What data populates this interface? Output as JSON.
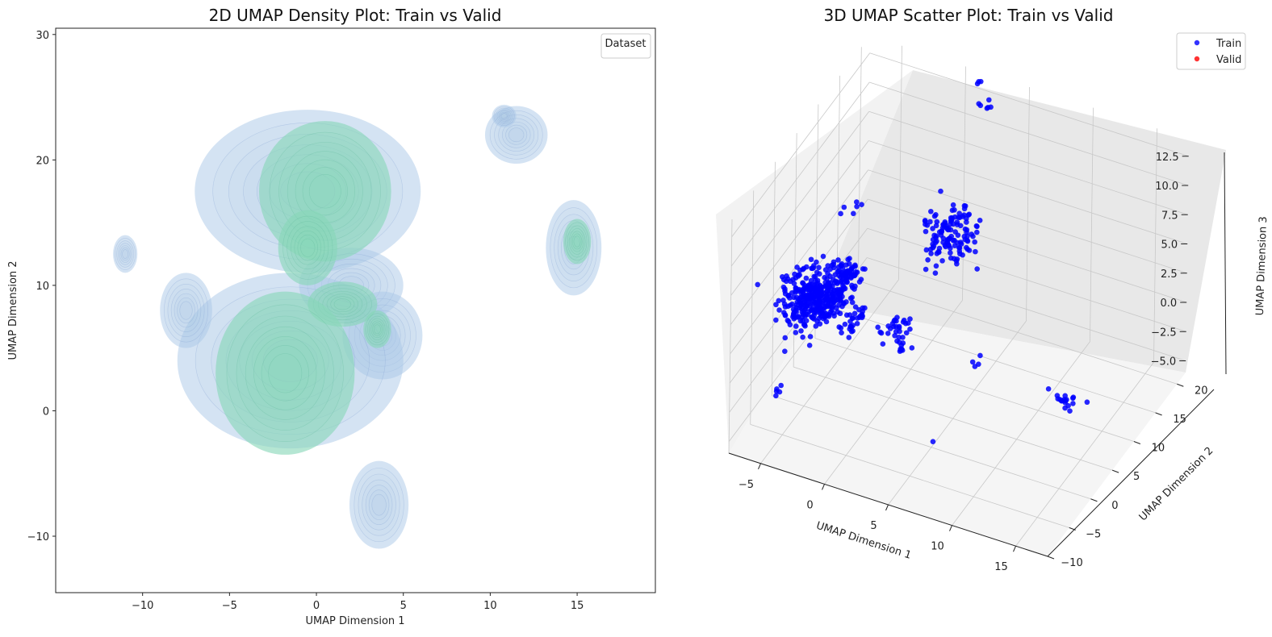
{
  "chart_data": [
    {
      "type": "density",
      "title": "2D UMAP Density Plot: Train vs Valid",
      "xlabel": "UMAP Dimension 1",
      "ylabel": "UMAP Dimension 2",
      "xlim": [
        -15,
        19.5
      ],
      "ylim": [
        -14.5,
        30.5
      ],
      "xticks": [
        -10,
        -5,
        0,
        5,
        10,
        15
      ],
      "xtick_labels": [
        "−10",
        "−5",
        "0",
        "5",
        "10",
        "15"
      ],
      "yticks": [
        -10,
        0,
        10,
        20,
        30
      ],
      "ytick_labels": [
        "−10",
        "0",
        "10",
        "20",
        "30"
      ],
      "grid": false,
      "legend": {
        "title": "Dataset",
        "position": "top-right"
      },
      "series": [
        {
          "color": "#a9c8e8",
          "blobs": [
            {
              "x": -0.5,
              "y": 17.5,
              "rx": 6.5,
              "ry": 6.5
            },
            {
              "x": 2.0,
              "y": 10.0,
              "rx": 3.0,
              "ry": 3.0
            },
            {
              "x": 3.8,
              "y": 6.0,
              "rx": 2.3,
              "ry": 3.5
            },
            {
              "x": -1.5,
              "y": 4.0,
              "rx": 6.5,
              "ry": 7.0
            },
            {
              "x": -7.5,
              "y": 8.0,
              "rx": 1.5,
              "ry": 3.0
            },
            {
              "x": -11.0,
              "y": 12.5,
              "rx": 0.7,
              "ry": 1.5
            },
            {
              "x": 3.6,
              "y": -7.5,
              "rx": 1.7,
              "ry": 3.5
            },
            {
              "x": 11.5,
              "y": 22.0,
              "rx": 1.8,
              "ry": 2.3
            },
            {
              "x": 10.8,
              "y": 23.5,
              "rx": 0.7,
              "ry": 0.9
            },
            {
              "x": 14.8,
              "y": 13.0,
              "rx": 1.6,
              "ry": 3.8
            }
          ]
        },
        {
          "color": "#88d7b8",
          "blobs": [
            {
              "x": 0.5,
              "y": 17.5,
              "rx": 3.8,
              "ry": 5.6
            },
            {
              "x": -0.5,
              "y": 13.0,
              "rx": 1.7,
              "ry": 3.0
            },
            {
              "x": 1.5,
              "y": 8.5,
              "rx": 2.0,
              "ry": 1.8
            },
            {
              "x": 3.5,
              "y": 6.5,
              "rx": 0.8,
              "ry": 1.5
            },
            {
              "x": -1.8,
              "y": 3.0,
              "rx": 4.0,
              "ry": 6.5
            },
            {
              "x": 15.0,
              "y": 13.5,
              "rx": 0.8,
              "ry": 1.8
            }
          ]
        }
      ]
    },
    {
      "type": "scatter",
      "projection": "3d",
      "title": "3D UMAP Scatter Plot:  Train vs Valid",
      "xlabel": "UMAP Dimension 1",
      "ylabel": "UMAP Dimension 2",
      "zlabel": "UMAP Dimension 3",
      "xlim": [
        -7.5,
        17.5
      ],
      "ylim": [
        -10,
        22
      ],
      "zlim": [
        -6,
        14
      ],
      "xticks": [
        -5,
        0,
        5,
        10,
        15
      ],
      "xtick_labels": [
        "−5",
        "0",
        "5",
        "10",
        "15"
      ],
      "yticks": [
        -10,
        -5,
        0,
        5,
        10,
        15,
        20
      ],
      "ytick_labels": [
        "−10",
        "−5",
        "0",
        "5",
        "10",
        "15",
        "20"
      ],
      "zticks": [
        -5,
        -2.5,
        0,
        2.5,
        5,
        7.5,
        10,
        12.5
      ],
      "ztick_labels": [
        "−5.0",
        "−2.5",
        "0.0",
        "2.5",
        "5.0",
        "7.5",
        "10.0",
        "12.5"
      ],
      "grid": true,
      "legend": {
        "position": "top-right"
      },
      "series": [
        {
          "name": "Train",
          "color": "#0000ff",
          "clusters": [
            {
              "x": -5.2,
              "y": 1.0,
              "z": 2.5,
              "sx": 0.9,
              "sy": 1.6,
              "sz": 1.0,
              "n": 220
            },
            {
              "x": -4.0,
              "y": 2.0,
              "z": 3.0,
              "sx": 0.9,
              "sy": 1.4,
              "sz": 0.9,
              "n": 150
            },
            {
              "x": -3.0,
              "y": 3.5,
              "z": 4.2,
              "sx": 0.6,
              "sy": 1.0,
              "sz": 0.5,
              "n": 60
            },
            {
              "x": -1.5,
              "y": 1.0,
              "z": 2.3,
              "sx": 0.4,
              "sy": 1.0,
              "sz": 0.6,
              "n": 30
            },
            {
              "x": -4.2,
              "y": 8.0,
              "z": 7.5,
              "sx": 0.4,
              "sy": 0.6,
              "sz": 0.3,
              "n": 6
            },
            {
              "x": 1.5,
              "y": 2.5,
              "z": 1.8,
              "sx": 0.5,
              "sy": 1.0,
              "sz": 0.5,
              "n": 30
            },
            {
              "x": 1.0,
              "y": 5.0,
              "z": -1.5,
              "sx": 0.3,
              "sy": 0.5,
              "sz": 0.3,
              "n": 8
            },
            {
              "x": 1.6,
              "y": 14.0,
              "z": 4.0,
              "sx": 0.9,
              "sy": 1.8,
              "sz": 1.0,
              "n": 130
            },
            {
              "x": 2.3,
              "y": 20.0,
              "z": 12.5,
              "sx": 0.25,
              "sy": 0.3,
              "sz": 0.25,
              "n": 6
            },
            {
              "x": 1.0,
              "y": 22.0,
              "z": 13.0,
              "sx": 0.15,
              "sy": 0.2,
              "sz": 0.15,
              "n": 3
            },
            {
              "x": 7.0,
              "y": 4.0,
              "z": 0.0,
              "sx": 0.15,
              "sy": 0.3,
              "sz": 0.2,
              "n": 4
            },
            {
              "x": 13.0,
              "y": 7.5,
              "z": -3.0,
              "sx": 0.5,
              "sy": 0.8,
              "sz": 0.3,
              "n": 18
            },
            {
              "x": -4.0,
              "y": -8.5,
              "z": 0.0,
              "sx": 0.15,
              "sy": 0.3,
              "sz": 0.2,
              "n": 5
            },
            {
              "x": 6.5,
              "y": -4.0,
              "z": -3.0,
              "sx": 0.05,
              "sy": 0.05,
              "sz": 0.05,
              "n": 1
            }
          ]
        },
        {
          "name": "Valid",
          "color": "#ff0000",
          "clusters": []
        }
      ]
    }
  ]
}
